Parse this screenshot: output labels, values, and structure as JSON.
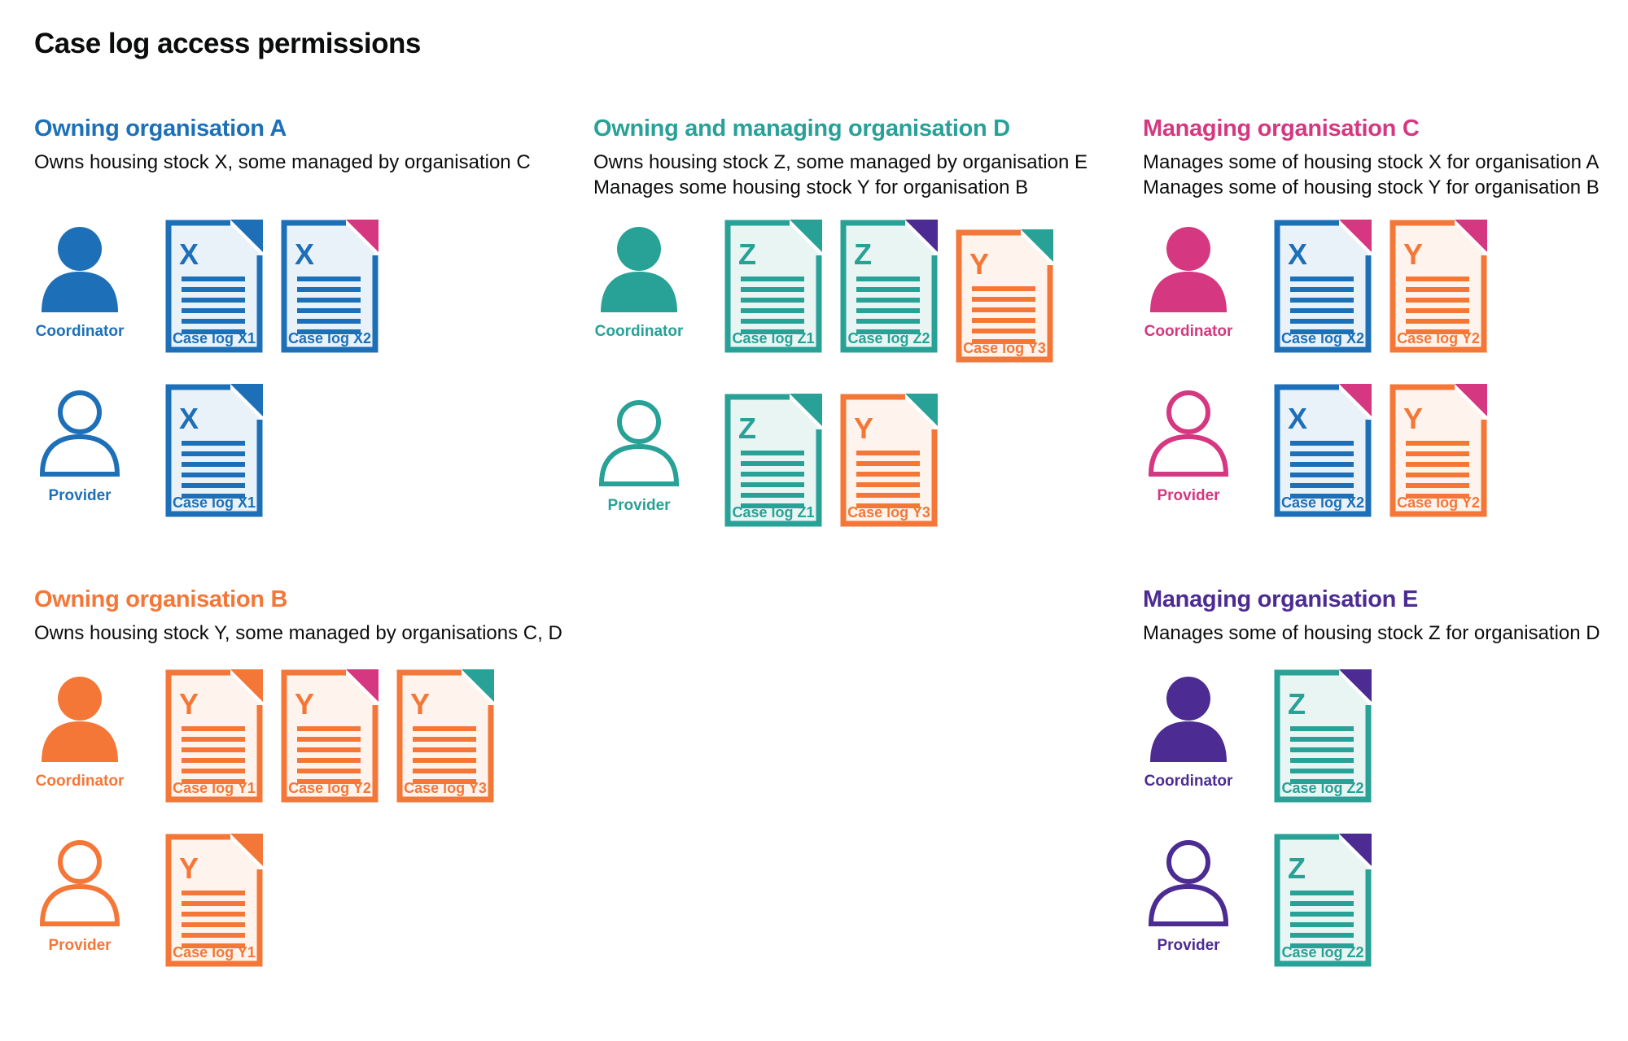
{
  "page": {
    "title": "Case log access permissions"
  },
  "colors": {
    "blue": {
      "main": "#1d70b8",
      "tint": "#eaf2f9"
    },
    "teal": {
      "main": "#28a197",
      "tint": "#e9f5f3"
    },
    "orange": {
      "main": "#f47738",
      "tint": "#fef4ed"
    },
    "pink": {
      "main": "#d53880",
      "tint": "#fbebf2"
    },
    "purple": {
      "main": "#4c2c92",
      "tint": "#ece8f3"
    }
  },
  "sections": [
    {
      "id": "owning-organisation-a",
      "heading": "Owning organisation A",
      "color": "blue",
      "description": [
        "Owns housing stock X, some managed by organisation C"
      ],
      "rows": [
        {
          "role": "Coordinator",
          "person": "filled",
          "docs": [
            {
              "letter": "X",
              "label": "Case log X1",
              "doc_color": "blue",
              "fold_color": "blue"
            },
            {
              "letter": "X",
              "label": "Case log X2",
              "doc_color": "blue",
              "fold_color": "pink"
            }
          ]
        },
        {
          "role": "Provider",
          "person": "outline",
          "docs": [
            {
              "letter": "X",
              "label": "Case log X1",
              "doc_color": "blue",
              "fold_color": "blue"
            }
          ]
        }
      ]
    },
    {
      "id": "owning-and-managing-organisation-d",
      "heading": "Owning and managing organisation D",
      "color": "teal",
      "description": [
        "Owns housing stock Z, some managed by organisation E",
        "Manages some housing stock Y for organisation B"
      ],
      "rows": [
        {
          "role": "Coordinator",
          "person": "filled",
          "docs": [
            {
              "letter": "Z",
              "label": "Case log Z1",
              "doc_color": "teal",
              "fold_color": "teal"
            },
            {
              "letter": "Z",
              "label": "Case log Z2",
              "doc_color": "teal",
              "fold_color": "purple"
            },
            {
              "letter": "Y",
              "label": "Case log Y3",
              "doc_color": "orange",
              "fold_color": "teal",
              "nudge_down": true
            }
          ]
        },
        {
          "role": "Provider",
          "person": "outline",
          "docs": [
            {
              "letter": "Z",
              "label": "Case log Z1",
              "doc_color": "teal",
              "fold_color": "teal"
            },
            {
              "letter": "Y",
              "label": "Case log Y3",
              "doc_color": "orange",
              "fold_color": "teal"
            }
          ]
        }
      ]
    },
    {
      "id": "managing-organisation-c",
      "heading": "Managing organisation C",
      "color": "pink",
      "description": [
        "Manages some of housing stock X for organisation A",
        "Manages some of housing stock Y for organisation B"
      ],
      "rows": [
        {
          "role": "Coordinator",
          "person": "filled",
          "docs": [
            {
              "letter": "X",
              "label": "Case log X2",
              "doc_color": "blue",
              "fold_color": "pink"
            },
            {
              "letter": "Y",
              "label": "Case log Y2",
              "doc_color": "orange",
              "fold_color": "pink"
            }
          ]
        },
        {
          "role": "Provider",
          "person": "outline",
          "docs": [
            {
              "letter": "X",
              "label": "Case log X2",
              "doc_color": "blue",
              "fold_color": "pink"
            },
            {
              "letter": "Y",
              "label": "Case log Y2",
              "doc_color": "orange",
              "fold_color": "pink"
            }
          ]
        }
      ]
    },
    {
      "id": "owning-organisation-b",
      "heading": "Owning organisation B",
      "color": "orange",
      "description": [
        "Owns housing stock Y, some managed by organisations C, D"
      ],
      "rows": [
        {
          "role": "Coordinator",
          "person": "filled",
          "docs": [
            {
              "letter": "Y",
              "label": "Case log Y1",
              "doc_color": "orange",
              "fold_color": "orange"
            },
            {
              "letter": "Y",
              "label": "Case log Y2",
              "doc_color": "orange",
              "fold_color": "pink"
            },
            {
              "letter": "Y",
              "label": "Case log Y3",
              "doc_color": "orange",
              "fold_color": "teal"
            }
          ]
        },
        {
          "role": "Provider",
          "person": "outline",
          "docs": [
            {
              "letter": "Y",
              "label": "Case log Y1",
              "doc_color": "orange",
              "fold_color": "orange"
            }
          ]
        }
      ]
    },
    {
      "id": "managing-organisation-e",
      "heading": "Managing organisation E",
      "color": "purple",
      "description": [
        "Manages some of housing stock Z for organisation D"
      ],
      "rows": [
        {
          "role": "Coordinator",
          "person": "filled",
          "docs": [
            {
              "letter": "Z",
              "label": "Case log Z2",
              "doc_color": "teal",
              "fold_color": "purple"
            }
          ]
        },
        {
          "role": "Provider",
          "person": "outline",
          "docs": [
            {
              "letter": "Z",
              "label": "Case log Z2",
              "doc_color": "teal",
              "fold_color": "purple"
            }
          ]
        }
      ]
    }
  ]
}
